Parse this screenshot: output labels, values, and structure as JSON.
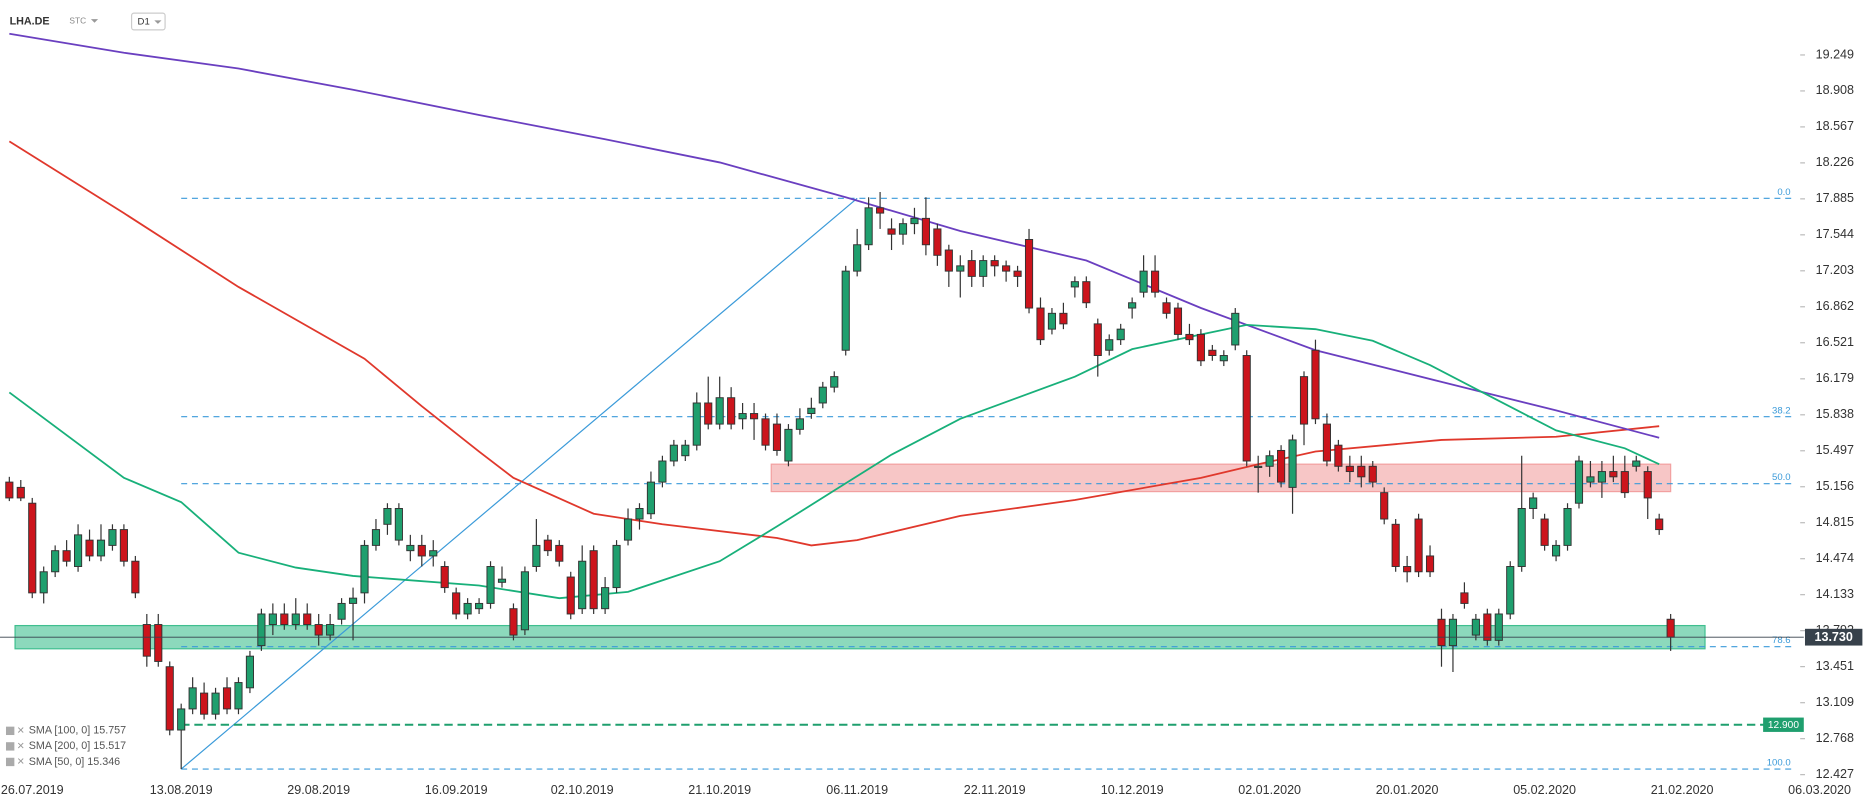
{
  "header": {
    "symbol": "LHA.DE",
    "asset_type": "STC",
    "interval": "D1"
  },
  "chart_data": {
    "type": "candlestick",
    "categories": [
      null,
      null,
      "26.07.2019",
      null,
      null,
      null,
      null,
      null,
      null,
      null,
      null,
      null,
      null,
      null,
      null,
      "13.08.2019",
      null,
      null,
      null,
      null,
      null,
      null,
      null,
      null,
      null,
      null,
      null,
      "29.08.2019",
      null,
      null,
      null,
      null,
      null,
      null,
      null,
      null,
      null,
      null,
      null,
      "16.09.2019",
      null,
      null,
      null,
      null,
      null,
      null,
      null,
      null,
      null,
      null,
      "02.10.2019",
      null,
      null,
      null,
      null,
      null,
      null,
      null,
      null,
      null,
      null,
      null,
      "21.10.2019",
      null,
      null,
      null,
      null,
      null,
      null,
      null,
      null,
      null,
      null,
      null,
      "06.11.2019",
      null,
      null,
      null,
      null,
      null,
      null,
      null,
      null,
      null,
      null,
      null,
      "22.11.2019",
      null,
      null,
      null,
      null,
      null,
      null,
      null,
      null,
      null,
      null,
      null,
      "10.12.2019",
      null,
      null,
      null,
      null,
      null,
      null,
      null,
      null,
      null,
      null,
      null,
      "02.01.2020",
      null,
      null,
      null,
      null,
      null,
      null,
      null,
      null,
      null,
      null,
      null,
      "20.01.2020",
      null,
      null,
      null,
      null,
      null,
      null,
      null,
      null,
      null,
      null,
      null,
      "05.02.2020",
      null,
      null,
      null,
      null,
      null,
      null,
      null,
      null,
      null,
      null,
      null,
      "21.02.2020",
      null,
      null,
      null,
      null,
      null,
      null,
      null,
      null,
      null,
      null,
      null,
      "06.03.2020"
    ],
    "open": [
      15.2,
      15.15,
      15.0,
      14.15,
      14.35,
      14.55,
      14.4,
      14.65,
      14.5,
      14.6,
      14.75,
      14.45,
      13.85,
      13.85,
      13.45,
      12.85,
      13.05,
      13.2,
      13.0,
      13.25,
      13.05,
      13.25,
      13.65,
      13.85,
      13.95,
      13.85,
      13.95,
      13.85,
      13.75,
      13.9,
      14.05,
      14.15,
      14.6,
      14.8,
      14.65,
      14.55,
      14.6,
      14.5,
      14.4,
      14.15,
      13.95,
      14.0,
      14.05,
      14.25,
      14.0,
      13.8,
      14.4,
      14.65,
      14.6,
      14.3,
      14.0,
      14.55,
      14.0,
      14.2,
      14.65,
      14.85,
      14.9,
      15.2,
      15.4,
      15.45,
      15.55,
      15.95,
      15.75,
      16.0,
      15.8,
      15.85,
      15.8,
      15.75,
      15.4,
      15.7,
      15.85,
      15.95,
      16.1,
      16.45,
      17.2,
      17.45,
      17.8,
      17.6,
      17.55,
      17.65,
      17.7,
      17.6,
      17.4,
      17.2,
      17.3,
      17.15,
      17.3,
      17.25,
      17.2,
      17.5,
      16.85,
      16.65,
      16.8,
      17.05,
      17.1,
      16.7,
      16.45,
      16.55,
      16.85,
      17.0,
      17.2,
      16.9,
      16.85,
      16.6,
      16.6,
      16.45,
      16.35,
      16.5,
      16.4,
      15.35,
      15.35,
      15.5,
      15.15,
      16.2,
      16.45,
      15.75,
      15.55,
      15.35,
      15.35,
      15.35,
      15.1,
      14.8,
      14.4,
      14.85,
      14.5,
      13.9,
      13.65,
      14.15,
      13.75,
      13.95,
      13.7,
      13.95,
      14.4,
      14.95,
      14.85,
      14.5,
      14.6,
      15.0,
      15.2,
      15.2,
      15.3,
      15.3,
      15.35,
      15.3,
      14.85,
      13.9,
      null,
      null,
      null,
      null,
      null,
      null,
      null,
      null,
      null,
      null,
      null,
      null,
      null
    ],
    "high": [
      15.25,
      15.22,
      15.05,
      14.4,
      14.6,
      14.65,
      14.8,
      14.75,
      14.8,
      14.8,
      14.8,
      14.5,
      13.95,
      13.95,
      13.5,
      13.1,
      13.35,
      13.3,
      13.25,
      13.35,
      13.35,
      13.6,
      14.0,
      14.05,
      14.05,
      14.1,
      14.05,
      13.95,
      13.95,
      14.1,
      14.2,
      14.65,
      14.85,
      15.0,
      15.0,
      14.7,
      14.7,
      14.65,
      14.45,
      14.2,
      14.1,
      14.1,
      14.45,
      14.4,
      14.05,
      14.4,
      14.85,
      14.7,
      14.65,
      14.35,
      14.6,
      14.6,
      14.3,
      14.65,
      14.95,
      15.0,
      15.3,
      15.45,
      15.6,
      15.6,
      16.05,
      16.2,
      16.2,
      16.1,
      15.95,
      15.95,
      15.85,
      15.85,
      15.75,
      15.9,
      16.0,
      16.15,
      16.25,
      17.25,
      17.6,
      17.9,
      17.95,
      17.7,
      17.7,
      17.8,
      17.9,
      17.65,
      17.45,
      17.35,
      17.4,
      17.35,
      17.35,
      17.3,
      17.25,
      17.6,
      16.95,
      16.85,
      16.9,
      17.15,
      17.15,
      16.75,
      16.6,
      16.7,
      16.95,
      17.35,
      17.35,
      16.95,
      16.9,
      16.7,
      16.65,
      16.5,
      16.45,
      16.85,
      16.45,
      15.45,
      15.5,
      15.55,
      15.65,
      16.25,
      16.55,
      15.85,
      15.6,
      15.45,
      15.45,
      15.4,
      15.15,
      14.85,
      14.5,
      14.9,
      14.6,
      14.0,
      13.95,
      14.25,
      13.95,
      14.0,
      14.0,
      14.45,
      15.45,
      15.1,
      14.9,
      14.65,
      15.0,
      15.45,
      15.4,
      15.4,
      15.45,
      15.45,
      15.45,
      15.35,
      14.9,
      13.95,
      null,
      null,
      null,
      null,
      null,
      null,
      null,
      null,
      null,
      null,
      null,
      null,
      null
    ],
    "low": [
      15.02,
      15.02,
      14.1,
      14.05,
      14.3,
      14.4,
      14.35,
      14.45,
      14.45,
      14.55,
      14.4,
      14.1,
      13.45,
      13.45,
      12.8,
      12.48,
      13.0,
      12.95,
      12.95,
      13.0,
      13.0,
      13.2,
      13.6,
      13.75,
      13.8,
      13.8,
      13.8,
      13.65,
      13.7,
      13.85,
      13.7,
      14.05,
      14.55,
      14.7,
      14.6,
      14.45,
      14.4,
      14.4,
      14.15,
      13.9,
      13.9,
      13.95,
      14.0,
      14.2,
      13.7,
      13.75,
      14.35,
      14.5,
      14.4,
      13.9,
      13.95,
      13.95,
      13.95,
      14.15,
      14.6,
      14.75,
      14.85,
      15.15,
      15.35,
      15.4,
      15.5,
      15.7,
      15.7,
      15.7,
      15.7,
      15.6,
      15.5,
      15.45,
      15.35,
      15.65,
      15.8,
      15.9,
      16.05,
      16.4,
      17.15,
      17.4,
      17.6,
      17.4,
      17.45,
      17.55,
      17.35,
      17.25,
      17.05,
      16.95,
      17.05,
      17.05,
      17.15,
      17.1,
      17.05,
      16.8,
      16.5,
      16.6,
      16.65,
      16.95,
      16.85,
      16.2,
      16.4,
      16.5,
      16.75,
      16.95,
      16.95,
      16.75,
      16.55,
      16.5,
      16.3,
      16.35,
      16.3,
      16.45,
      15.35,
      15.1,
      15.25,
      15.15,
      14.9,
      15.55,
      15.75,
      15.35,
      15.3,
      15.2,
      15.15,
      15.15,
      14.8,
      14.35,
      14.25,
      14.3,
      14.3,
      13.45,
      13.4,
      14.0,
      13.7,
      13.65,
      13.65,
      13.9,
      14.35,
      14.85,
      14.55,
      14.45,
      14.55,
      14.95,
      15.15,
      15.05,
      15.2,
      15.05,
      15.3,
      14.85,
      14.7,
      13.6,
      null,
      null,
      null,
      null,
      null,
      null,
      null,
      null,
      null,
      null,
      null,
      null,
      null
    ],
    "close": [
      15.05,
      15.05,
      14.15,
      14.35,
      14.55,
      14.45,
      14.7,
      14.5,
      14.65,
      14.75,
      14.45,
      14.15,
      13.55,
      13.5,
      12.85,
      13.05,
      13.25,
      13.0,
      13.2,
      13.05,
      13.3,
      13.55,
      13.95,
      13.95,
      13.85,
      13.95,
      13.85,
      13.75,
      13.85,
      14.05,
      14.1,
      14.6,
      14.75,
      14.95,
      14.95,
      14.6,
      14.5,
      14.55,
      14.2,
      13.95,
      14.05,
      14.05,
      14.4,
      14.28,
      13.75,
      14.35,
      14.6,
      14.55,
      14.45,
      13.95,
      14.45,
      14.0,
      14.2,
      14.6,
      14.85,
      14.95,
      15.2,
      15.4,
      15.55,
      15.55,
      15.95,
      15.75,
      16.0,
      15.75,
      15.85,
      15.8,
      15.55,
      15.5,
      15.7,
      15.8,
      15.9,
      16.1,
      16.2,
      17.2,
      17.45,
      17.8,
      17.75,
      17.55,
      17.65,
      17.7,
      17.45,
      17.35,
      17.2,
      17.25,
      17.15,
      17.3,
      17.25,
      17.2,
      17.15,
      16.85,
      16.55,
      16.8,
      16.7,
      17.1,
      16.9,
      16.4,
      16.55,
      16.65,
      16.9,
      17.2,
      17.0,
      16.8,
      16.6,
      16.55,
      16.35,
      16.4,
      16.4,
      16.8,
      15.4,
      15.35,
      15.45,
      15.2,
      15.6,
      15.75,
      15.8,
      15.4,
      15.35,
      15.3,
      15.25,
      15.2,
      14.85,
      14.4,
      14.35,
      14.35,
      14.35,
      13.65,
      13.9,
      14.05,
      13.9,
      13.7,
      13.95,
      14.4,
      14.95,
      15.05,
      14.6,
      14.6,
      14.95,
      15.4,
      15.25,
      15.3,
      15.25,
      15.1,
      15.4,
      15.05,
      14.75,
      13.73,
      null,
      null,
      null,
      null,
      null,
      null,
      null,
      null,
      null,
      null,
      null,
      null,
      null
    ],
    "up_color": "#1f9f6e",
    "down_color": "#cc141c",
    "ylim": [
      12.4,
      19.77
    ],
    "yticks": [
      12.427,
      12.768,
      13.109,
      13.451,
      13.792,
      14.133,
      14.474,
      14.815,
      15.156,
      15.497,
      15.838,
      16.179,
      16.521,
      16.862,
      17.203,
      17.544,
      17.885,
      18.226,
      18.567,
      18.908,
      19.249
    ],
    "grid": false,
    "sma": [
      {
        "name": "SMA [100, 0] 15.757",
        "color": "#e0382c",
        "x": [
          0,
          10,
          20,
          31,
          36,
          41,
          44,
          51,
          57,
          67,
          70,
          74,
          83,
          93,
          104,
          109,
          114,
          125,
          135,
          144
        ],
        "values": [
          18.43,
          17.75,
          17.05,
          16.37,
          15.92,
          15.49,
          15.24,
          14.9,
          14.8,
          14.67,
          14.6,
          14.65,
          14.88,
          15.03,
          15.24,
          15.37,
          15.49,
          15.6,
          15.63,
          15.73
        ]
      },
      {
        "name": "SMA [200, 0] 15.517",
        "color": "#6a3fc0",
        "x": [
          0,
          10,
          20,
          30,
          41,
          52,
          62,
          73,
          83,
          94,
          104,
          114,
          125,
          135,
          144
        ],
        "values": [
          19.45,
          19.27,
          19.12,
          18.92,
          18.68,
          18.45,
          18.23,
          17.9,
          17.58,
          17.3,
          16.85,
          16.45,
          16.15,
          15.88,
          15.62
        ]
      },
      {
        "name": "SMA [50, 0] 15.346",
        "color": "#18b07a",
        "x": [
          0,
          10,
          15,
          20,
          25,
          30,
          41,
          48,
          54,
          62,
          67,
          72,
          77,
          83,
          93,
          98,
          104,
          108,
          114,
          119,
          124,
          130,
          135,
          141,
          144
        ],
        "values": [
          16.05,
          15.24,
          15.01,
          14.53,
          14.39,
          14.31,
          14.22,
          14.1,
          14.16,
          14.45,
          14.78,
          15.12,
          15.46,
          15.8,
          16.2,
          16.46,
          16.6,
          16.69,
          16.65,
          16.54,
          16.31,
          15.97,
          15.69,
          15.52,
          15.37
        ]
      }
    ],
    "fib_levels": [
      {
        "label": "0.0",
        "value": 17.89
      },
      {
        "label": "38.2",
        "value": 15.82
      },
      {
        "label": "50.0",
        "value": 15.185
      },
      {
        "label": "78.6",
        "value": 13.64
      },
      {
        "label": "100.0",
        "value": 12.48
      }
    ],
    "trendline": {
      "x": [
        15,
        74
      ],
      "values": [
        12.48,
        17.89
      ],
      "color": "#3a9ad9"
    },
    "zones": [
      {
        "from": 13.62,
        "to": 13.84,
        "x": [
          1,
          148
        ],
        "color": "#3fbf8f"
      },
      {
        "from": 15.11,
        "to": 15.37,
        "x": [
          67,
          145
        ],
        "color": "#f2a0a0"
      }
    ],
    "support": {
      "value": 12.9,
      "label": "12.900",
      "color": "#1f9f6e"
    },
    "last_price": {
      "value": 13.73,
      "label": "13.730"
    }
  }
}
